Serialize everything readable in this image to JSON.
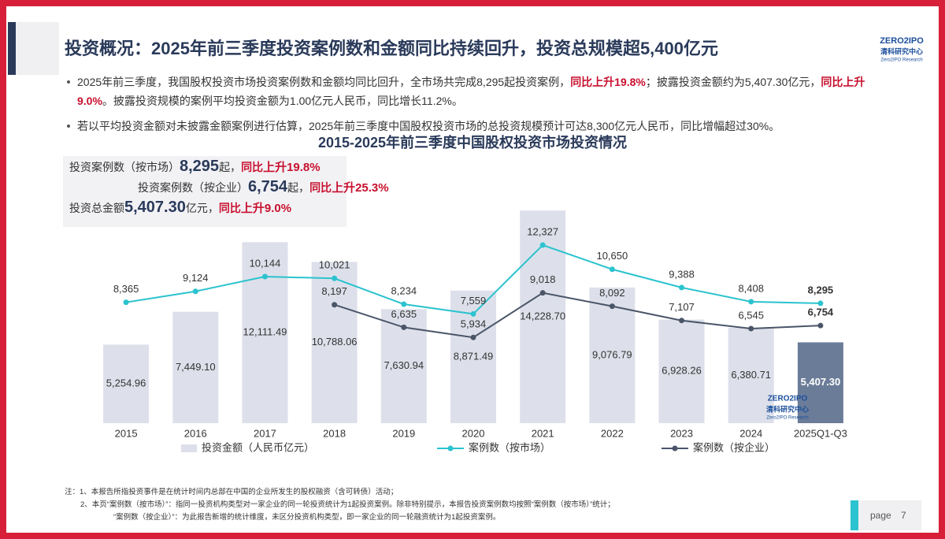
{
  "header": {
    "title": "投资概况：2025年前三季度投资案例数和金额同比持续回升，投资总规模超5,400亿元"
  },
  "logo": {
    "mark": "ZERO2IPO",
    "name": "清科研究中心",
    "sub": "Zero2IPO Research"
  },
  "bullets": [
    [
      {
        "text": "2025年前三季度，我国股权投资市场投资案例数和金额均同比回升，全市场共完成8,295起投资案例，",
        "style": "normal"
      },
      {
        "text": "同比上升19.8%",
        "style": "red"
      },
      {
        "text": "；披露投资金额约为5,407.30亿元，",
        "style": "normal"
      },
      {
        "text": "同比上升9.0%",
        "style": "red"
      },
      {
        "text": "。披露投资规模的案例平均投资金额为1.00亿元人民币，同比增长11.2%。",
        "style": "normal"
      }
    ],
    [
      {
        "text": "若以平均投资金额对未披露金额案例进行估算，2025年前三季度中国股权投资市场的总投资规模预计可达8,300亿元人民币，同比增幅超过30%。",
        "style": "normal"
      }
    ]
  ],
  "summary": [
    [
      {
        "text": "投资案例数（按市场）",
        "style": "normal"
      },
      {
        "text": "8,295",
        "style": "big"
      },
      {
        "text": "起，",
        "style": "normal"
      },
      {
        "text": "同比",
        "style": "red"
      },
      {
        "text": "上升19.8%",
        "style": "redbig"
      }
    ],
    [
      {
        "text": "投资案例数（按企业）",
        "style": "normal"
      },
      {
        "text": "6,754",
        "style": "big"
      },
      {
        "text": "起，",
        "style": "normal"
      },
      {
        "text": "同比",
        "style": "red"
      },
      {
        "text": "上升25.3%",
        "style": "redbig"
      }
    ],
    [
      {
        "text": "投资总金额",
        "style": "normal"
      },
      {
        "text": "5,407.30",
        "style": "big"
      },
      {
        "text": "亿元，",
        "style": "normal"
      },
      {
        "text": "同比",
        "style": "red"
      },
      {
        "text": "上升9.0%",
        "style": "redbig"
      }
    ]
  ],
  "chart_data": {
    "type": "bar",
    "title": "2015-2025年前三季度中国股权投资市场投资情况",
    "categories": [
      "2015",
      "2016",
      "2017",
      "2018",
      "2019",
      "2020",
      "2021",
      "2022",
      "2023",
      "2024",
      "2025Q1-Q3"
    ],
    "series": [
      {
        "name": "投资金额（人民币亿元）",
        "type": "bar",
        "color": "#dde0ea",
        "colors": [
          "#dde0ea",
          "#dde0ea",
          "#dde0ea",
          "#dde0ea",
          "#dde0ea",
          "#dde0ea",
          "#dde0ea",
          "#dde0ea",
          "#dde0ea",
          "#dde0ea",
          "#6b7c98"
        ],
        "values": [
          5254.96,
          7449.1,
          12111.49,
          10788.06,
          7630.94,
          8871.49,
          14228.7,
          9076.79,
          6928.26,
          6380.71,
          5407.3
        ],
        "value_labels": [
          "5,254.96",
          "7,449.10",
          "12,111.49",
          "10,788.06",
          "7,630.94",
          "8,871.49",
          "14,228.70",
          "9,076.79",
          "6,928.26",
          "6,380.71",
          "5,407.30"
        ]
      },
      {
        "name": "案例数（按市场）",
        "type": "line",
        "axis": "y2",
        "color": "#2bc3cf",
        "values": [
          8365,
          9124,
          10144,
          10021,
          8234,
          7559,
          12327,
          10650,
          9388,
          8408,
          8295
        ],
        "value_labels": [
          "8,365",
          "9,124",
          "10,144",
          "10,021",
          "8,234",
          "7,559",
          "12,327",
          "10,650",
          "9,388",
          "8,408",
          "8,295"
        ]
      },
      {
        "name": "案例数（按企业）",
        "type": "line",
        "axis": "y2",
        "color": "#4a5568",
        "values": [
          null,
          null,
          null,
          8197,
          6635,
          5934,
          9018,
          8092,
          7107,
          6545,
          6754
        ],
        "value_labels": [
          null,
          null,
          null,
          "8,197",
          "6,635",
          "5,934",
          "9,018",
          "8,092",
          "7,107",
          "6,545",
          "6,754"
        ]
      }
    ],
    "ylim": [
      0,
      14500
    ],
    "y2lim": [
      0,
      15000
    ],
    "grid": false
  },
  "notes": [
    "注：1、本报告所指投资事件是在统计时间内总部在中国的企业所发生的股权融资（含可转债）活动；",
    "2、本页“案例数（按市场）”：指同一投资机构类型对一家企业的同一轮投资统计为1起投资案例。除非特别提示，本报告投资案例数均按照“案例数（按市场）”统计；",
    "“案例数（按企业）”：为此报告新增的统计维度，未区分投资机构类型，即一家企业的同一轮融资统计为1起投资案例。"
  ],
  "footer": {
    "page_label": "page",
    "page_number": "7"
  }
}
